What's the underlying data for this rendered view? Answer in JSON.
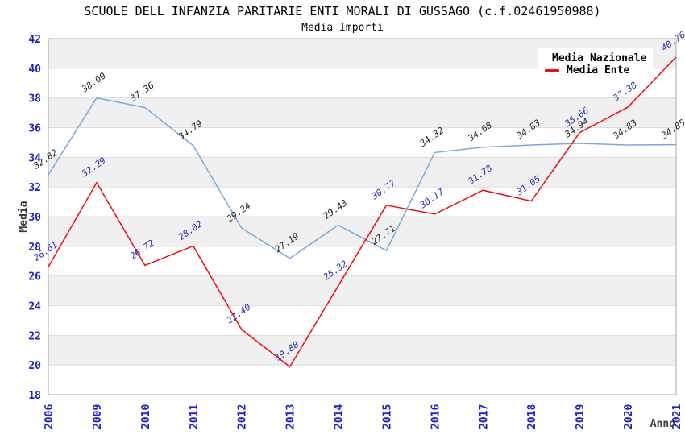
{
  "chart_data": {
    "type": "line",
    "title": "SCUOLE DELL INFANZIA PARITARIE ENTI MORALI DI GUSSAGO (c.f.02461950988)",
    "subtitle": "Media Importi",
    "xlabel": "Anno",
    "ylabel": "Media",
    "ylim": [
      18,
      42
    ],
    "ytick_step": 2,
    "grid": "horizontal-bands",
    "legend_position": "top-right",
    "categories": [
      "2006",
      "2009",
      "2010",
      "2011",
      "2012",
      "2013",
      "2014",
      "2015",
      "2016",
      "2017",
      "2018",
      "2019",
      "2020",
      "2021"
    ],
    "series": [
      {
        "id": "nazionale",
        "name": "Media Nazionale",
        "color": "#79a9dc",
        "label_color": "#1f1f1f",
        "values": [
          32.82,
          38.0,
          37.36,
          34.79,
          29.24,
          27.19,
          29.43,
          27.71,
          34.32,
          34.68,
          34.83,
          34.94,
          34.83,
          34.85
        ]
      },
      {
        "id": "ente",
        "name": "Media Ente",
        "color": "#ed0e0e",
        "label_color": "#2c2cb0",
        "values": [
          26.61,
          32.29,
          26.72,
          28.02,
          22.4,
          19.88,
          25.32,
          30.77,
          30.17,
          31.78,
          31.05,
          35.66,
          37.38,
          40.76
        ]
      }
    ],
    "colors": {
      "background": "#ffffff",
      "band": "#f0f0f0",
      "gridline": "#dcdcdc",
      "border": "#ababab",
      "tick_label": "#2121c8",
      "axis_title": "#3a3a3a",
      "title": "#000000"
    }
  }
}
